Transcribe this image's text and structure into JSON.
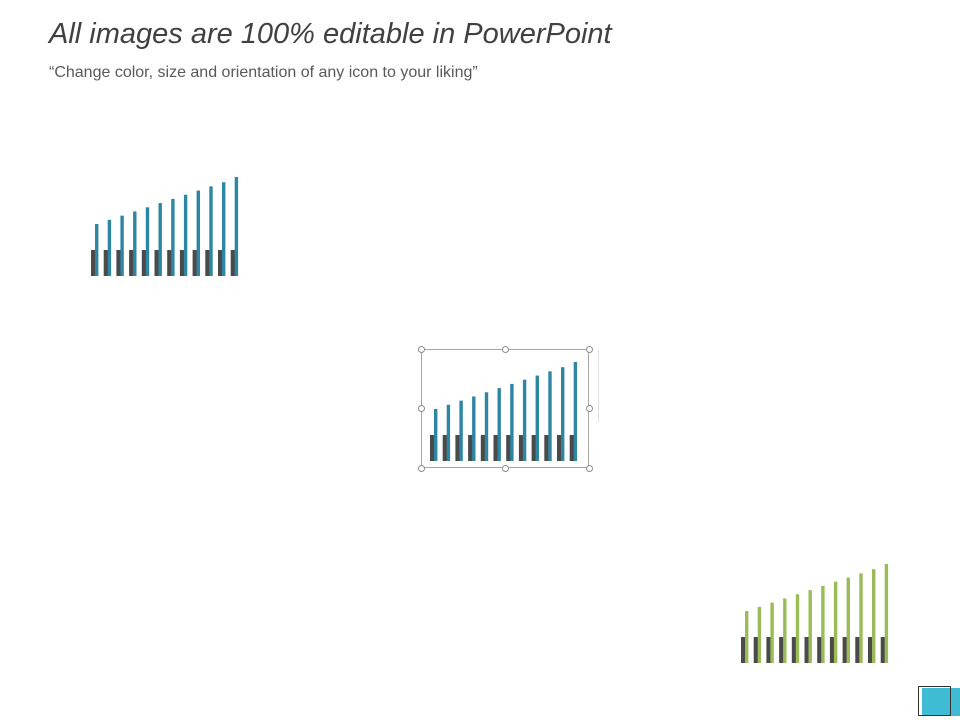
{
  "slide": {
    "title": "All images are 100% editable in PowerPoint",
    "subtitle": "“Change color, size and orientation of any icon to your liking”"
  },
  "icons": [
    {
      "name": "bar-chart-icon",
      "color": "#2e86a3",
      "base_color": "#4a4a4a",
      "selected": false
    },
    {
      "name": "bar-chart-icon",
      "color": "#2e86a3",
      "base_color": "#4a4a4a",
      "selected": true
    },
    {
      "name": "bar-chart-icon",
      "color": "#9bbb59",
      "base_color": "#4a4a4a",
      "selected": false
    }
  ],
  "colors": {
    "accent_corner": "#3fbcd4"
  }
}
